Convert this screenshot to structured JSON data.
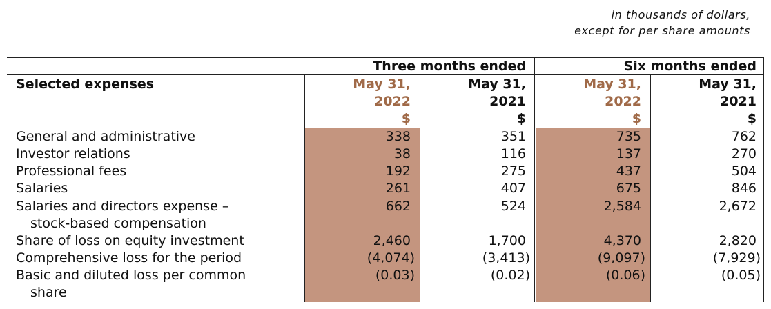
{
  "note": {
    "line1": "in thousands of dollars,",
    "line2": "except for per share amounts"
  },
  "header": {
    "section_label": "Selected expenses",
    "groups": [
      "Three months ended",
      "Six months ended"
    ],
    "columns": [
      {
        "line1": "May 31,",
        "line2": "2022",
        "unit": "$"
      },
      {
        "line1": "May 31,",
        "line2": "2021",
        "unit": "$"
      },
      {
        "line1": "May 31,",
        "line2": "2022",
        "unit": "$"
      },
      {
        "line1": "May 31,",
        "line2": "2021",
        "unit": "$"
      }
    ]
  },
  "rows": [
    {
      "label": "General and administrative",
      "values": [
        "338",
        "351",
        "735",
        "762"
      ]
    },
    {
      "label": "Investor relations",
      "values": [
        "38",
        "116",
        "137",
        "270"
      ]
    },
    {
      "label": "Professional fees",
      "values": [
        "192",
        "275",
        "437",
        "504"
      ]
    },
    {
      "label": "Salaries",
      "values": [
        "261",
        "407",
        "675",
        "846"
      ]
    },
    {
      "label": "Salaries and directors expense –",
      "label2": "stock-based compensation",
      "values": [
        "662",
        "524",
        "2,584",
        "2,672"
      ]
    },
    {
      "label": "Share of loss on equity investment",
      "values": [
        "2,460",
        "1,700",
        "4,370",
        "2,820"
      ]
    },
    {
      "label": "Comprehensive loss for the period",
      "values": [
        "(4,074)",
        "(3,413)",
        "(9,097)",
        "(7,929)"
      ]
    },
    {
      "label": "Basic and diluted loss per common",
      "label2": "share",
      "values": [
        "(0.03)",
        "(0.02)",
        "(0.06)",
        "(0.05)"
      ]
    }
  ],
  "colors": {
    "highlight": "#c4957f",
    "current_year_text": "#a06a48"
  }
}
